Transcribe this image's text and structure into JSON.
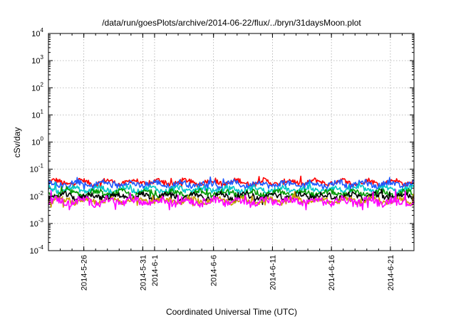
{
  "chart_data": {
    "type": "line",
    "title": "/data/run/goesPlots/archive/2014-06-22/flux/../bryn/31daysMoon.plot",
    "xlabel": "Coordinated Universal Time (UTC)",
    "ylabel": "cSv/day",
    "y_scale": "log",
    "ylim": [
      0.0001,
      10000
    ],
    "y_ticks": [
      {
        "base": "10",
        "exp": "-4"
      },
      {
        "base": "10",
        "exp": "-3"
      },
      {
        "base": "10",
        "exp": "-2"
      },
      {
        "base": "10",
        "exp": "-1"
      },
      {
        "base": "10",
        "exp": "0"
      },
      {
        "base": "10",
        "exp": "1"
      },
      {
        "base": "10",
        "exp": "2"
      },
      {
        "base": "10",
        "exp": "3"
      },
      {
        "base": "10",
        "exp": "4"
      }
    ],
    "xlim": [
      "2014-05-23",
      "2014-06-23"
    ],
    "x_ticks": [
      "2014-5-26",
      "2014-5-31",
      "2014-6-1",
      "2014-6-6",
      "2014-6-11",
      "2014-6-16",
      "2014-6-21"
    ],
    "grid": true,
    "legend": "none",
    "series": [
      {
        "color": "#ff0000",
        "x_range": [
          "2014-05-23",
          "2014-06-23"
        ],
        "typical_value": 0.033,
        "min_value": 0.022,
        "max_value": 0.075
      },
      {
        "color": "#1e5aff",
        "x_range": [
          "2014-05-23",
          "2014-06-23"
        ],
        "typical_value": 0.028,
        "min_value": 0.016,
        "max_value": 0.062
      },
      {
        "color": "#00c8c8",
        "x_range": [
          "2014-05-23",
          "2014-06-23"
        ],
        "typical_value": 0.018,
        "min_value": 0.01,
        "max_value": 0.035
      },
      {
        "color": "#009900",
        "x_range": [
          "2014-05-23",
          "2014-06-23"
        ],
        "typical_value": 0.013,
        "min_value": 0.007,
        "max_value": 0.025
      },
      {
        "color": "#000000",
        "x_range": [
          "2014-05-23",
          "2014-06-23"
        ],
        "typical_value": 0.01,
        "min_value": 0.005,
        "max_value": 0.02
      },
      {
        "color": "#c8a000",
        "x_range": [
          "2014-05-23",
          "2014-06-23"
        ],
        "typical_value": 0.007,
        "min_value": 0.004,
        "max_value": 0.015
      },
      {
        "color": "#ff00ff",
        "x_range": [
          "2014-05-23",
          "2014-06-23"
        ],
        "typical_value": 0.0065,
        "min_value": 0.0032,
        "max_value": 0.02
      }
    ]
  }
}
